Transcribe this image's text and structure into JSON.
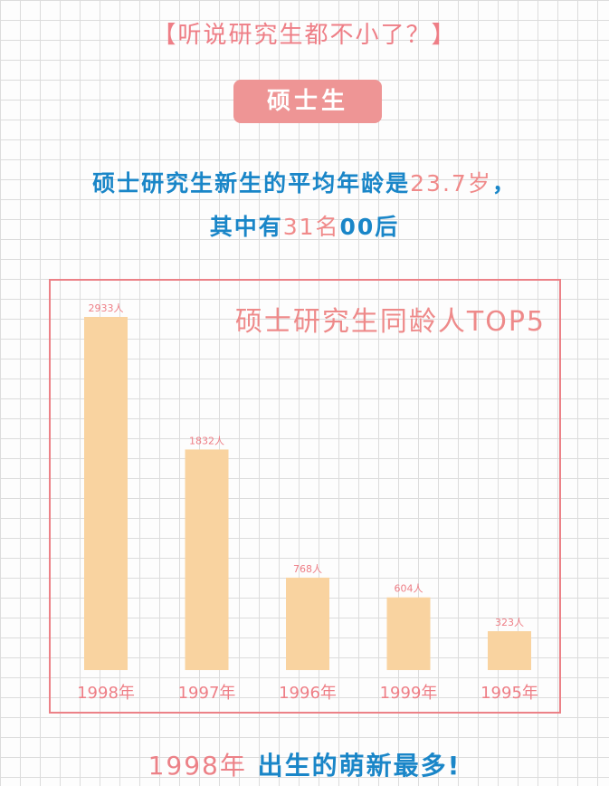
{
  "header": {
    "section_title": "【听说研究生都不小了？】",
    "badge": "硕士生"
  },
  "intro": {
    "line1_text": "硕士研究生新生的平均年龄是",
    "line1_value": "23.7岁",
    "line1_end": "，",
    "line2_start": "其中有",
    "line2_value": "31名",
    "line2_end": "00后"
  },
  "chart_data": {
    "type": "bar",
    "title": "硕士研究生同龄人TOP5",
    "categories": [
      "1998年",
      "1997年",
      "1996年",
      "1999年",
      "1995年"
    ],
    "values": [
      2933,
      1832,
      768,
      604,
      323
    ],
    "labels": [
      "2933人",
      "1832人",
      "768人",
      "604人",
      "323人"
    ],
    "ylim": [
      0,
      3000
    ],
    "grid": false,
    "bar_color": "#f9d3a0",
    "label_color": "#ee7e86"
  },
  "footer": {
    "highlight": "1998年",
    "rest": "出生的萌新最多!"
  },
  "colors": {
    "accent_pink": "#ee7e86",
    "accent_blue": "#1a86c8",
    "bar": "#f9d3a0"
  }
}
